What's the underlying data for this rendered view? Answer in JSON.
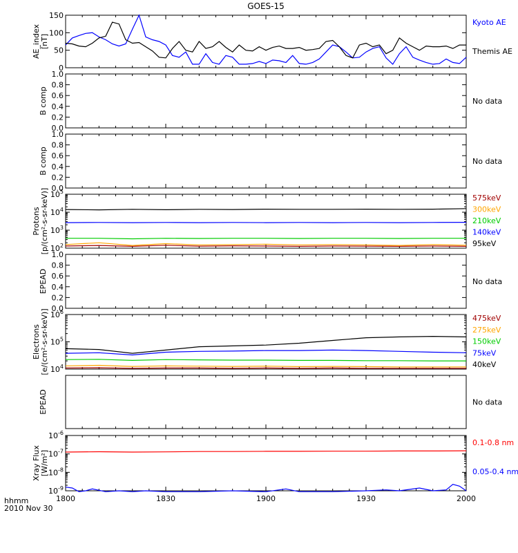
{
  "title": "GOES-15",
  "footer": {
    "time_label": "hhmm",
    "date_label": "2010 Nov 30"
  },
  "x_axis": {
    "ticks": [
      "1800",
      "1830",
      "1900",
      "1930",
      "2000"
    ],
    "range_minutes": [
      0,
      120
    ]
  },
  "no_data_text": "No data",
  "chart_data": [
    {
      "id": "ae",
      "type": "line",
      "ylabel": [
        "AE_index",
        "[nT]"
      ],
      "ylim": [
        0,
        150
      ],
      "scale": "linear",
      "ticks": [
        {
          "v": 0,
          "label": "0"
        },
        {
          "v": 50,
          "label": "50"
        },
        {
          "v": 100,
          "label": "100"
        },
        {
          "v": 150,
          "label": "150"
        }
      ],
      "series": [
        {
          "name": "Kyoto AE",
          "color": "#0000ff",
          "x": [
            0,
            2,
            4,
            6,
            8,
            10,
            12,
            14,
            16,
            18,
            20,
            22,
            24,
            26,
            28,
            30,
            32,
            34,
            36,
            38,
            40,
            42,
            44,
            46,
            48,
            50,
            52,
            54,
            56,
            58,
            60,
            62,
            64,
            66,
            68,
            70,
            72,
            74,
            76,
            78,
            80,
            82,
            84,
            86,
            88,
            90,
            92,
            94,
            96,
            98,
            100,
            102,
            104,
            106,
            108,
            110,
            112,
            114,
            116,
            118,
            120
          ],
          "y": [
            65,
            85,
            92,
            98,
            100,
            88,
            80,
            68,
            62,
            68,
            110,
            150,
            88,
            80,
            75,
            65,
            35,
            30,
            45,
            10,
            10,
            40,
            15,
            10,
            35,
            30,
            10,
            10,
            12,
            18,
            12,
            22,
            20,
            15,
            35,
            12,
            10,
            15,
            25,
            45,
            65,
            60,
            45,
            28,
            30,
            45,
            55,
            60,
            28,
            10,
            40,
            60,
            30,
            22,
            15,
            10,
            12,
            25,
            15,
            12,
            30
          ]
        },
        {
          "name": "Themis AE",
          "color": "#000000",
          "x": [
            0,
            2,
            4,
            6,
            8,
            10,
            12,
            14,
            16,
            18,
            20,
            22,
            24,
            26,
            28,
            30,
            32,
            34,
            36,
            38,
            40,
            42,
            44,
            46,
            48,
            50,
            52,
            54,
            56,
            58,
            60,
            62,
            64,
            66,
            68,
            70,
            72,
            74,
            76,
            78,
            80,
            82,
            84,
            86,
            88,
            90,
            92,
            94,
            96,
            98,
            100,
            102,
            104,
            106,
            108,
            110,
            112,
            114,
            116,
            118,
            120
          ],
          "y": [
            70,
            68,
            62,
            60,
            70,
            85,
            90,
            130,
            125,
            80,
            70,
            72,
            60,
            48,
            30,
            28,
            55,
            75,
            50,
            45,
            75,
            55,
            60,
            75,
            58,
            45,
            65,
            50,
            48,
            60,
            50,
            58,
            62,
            55,
            55,
            58,
            50,
            52,
            55,
            75,
            78,
            60,
            35,
            28,
            65,
            70,
            60,
            65,
            40,
            50,
            85,
            70,
            60,
            50,
            62,
            60,
            60,
            62,
            55,
            65,
            65
          ]
        }
      ],
      "legend": [
        "Kyoto AE",
        "Themis AE"
      ]
    },
    {
      "id": "bcomp1",
      "type": "line",
      "ylabel": [
        "B comp"
      ],
      "ylim": [
        0,
        1
      ],
      "scale": "linear",
      "ticks": [
        {
          "v": 0,
          "label": "0.0"
        },
        {
          "v": 0.2,
          "label": "0.2"
        },
        {
          "v": 0.4,
          "label": "0.4"
        },
        {
          "v": 0.6,
          "label": "0.6"
        },
        {
          "v": 0.8,
          "label": "0.8"
        },
        {
          "v": 1,
          "label": "1.0"
        }
      ],
      "no_data": true
    },
    {
      "id": "bcomp2",
      "type": "line",
      "ylabel": [
        "B comp"
      ],
      "ylim": [
        0,
        1
      ],
      "scale": "linear",
      "ticks": [
        {
          "v": 0,
          "label": "0.0"
        },
        {
          "v": 0.2,
          "label": "0.2"
        },
        {
          "v": 0.4,
          "label": "0.4"
        },
        {
          "v": 0.6,
          "label": "0.6"
        },
        {
          "v": 0.8,
          "label": "0.8"
        },
        {
          "v": 1,
          "label": "1.0"
        }
      ],
      "no_data": true
    },
    {
      "id": "protons",
      "type": "line",
      "ylabel": [
        "Protons",
        "[p/(cm²-s-sr-keV)]"
      ],
      "ylim_exp": [
        2,
        5
      ],
      "scale": "log",
      "ticks": [
        {
          "v": 2,
          "base": "10",
          "exp": "2"
        },
        {
          "v": 3,
          "base": "10",
          "exp": "3"
        },
        {
          "v": 4,
          "base": "10",
          "exp": "4"
        },
        {
          "v": 5,
          "base": "10",
          "exp": "5"
        }
      ],
      "series": [
        {
          "name": "575keV",
          "color": "#a00000",
          "x": [
            0,
            10,
            20,
            30,
            40,
            50,
            60,
            70,
            80,
            90,
            100,
            110,
            120
          ],
          "log10_y": [
            2.12,
            2.15,
            2.1,
            2.16,
            2.11,
            2.13,
            2.12,
            2.1,
            2.12,
            2.11,
            2.1,
            2.12,
            2.1
          ]
        },
        {
          "name": "300keV",
          "color": "#ffa500",
          "x": [
            0,
            10,
            20,
            30,
            40,
            50,
            60,
            70,
            80,
            90,
            100,
            110,
            120
          ],
          "log10_y": [
            2.2,
            2.3,
            2.15,
            2.25,
            2.18,
            2.2,
            2.22,
            2.18,
            2.2,
            2.18,
            2.15,
            2.2,
            2.16
          ]
        },
        {
          "name": "210keV",
          "color": "#00cc00",
          "x": [
            0,
            10,
            20,
            30,
            40,
            50,
            60,
            70,
            80,
            90,
            100,
            110,
            120
          ],
          "log10_y": [
            2.55,
            2.55,
            2.52,
            2.55,
            2.54,
            2.55,
            2.55,
            2.54,
            2.55,
            2.55,
            2.54,
            2.55,
            2.55
          ]
        },
        {
          "name": "140keV",
          "color": "#0000ff",
          "x": [
            0,
            10,
            20,
            30,
            40,
            50,
            60,
            70,
            80,
            90,
            100,
            110,
            120
          ],
          "log10_y": [
            3.42,
            3.43,
            3.42,
            3.43,
            3.42,
            3.43,
            3.42,
            3.43,
            3.42,
            3.43,
            3.42,
            3.43,
            3.44
          ]
        },
        {
          "name": "95keV",
          "color": "#000000",
          "x": [
            0,
            10,
            20,
            30,
            40,
            50,
            60,
            70,
            80,
            90,
            100,
            110,
            120
          ],
          "log10_y": [
            4.15,
            4.13,
            4.16,
            4.14,
            4.16,
            4.15,
            4.17,
            4.16,
            4.16,
            4.17,
            4.16,
            4.17,
            4.2
          ]
        }
      ],
      "legend": [
        "575keV",
        "300keV",
        "210keV",
        "140keV",
        "95keV"
      ]
    },
    {
      "id": "epead1",
      "type": "line",
      "ylabel": [
        "EPEAD"
      ],
      "ylim": [
        0,
        1
      ],
      "scale": "linear",
      "ticks": [
        {
          "v": 0,
          "label": "0.0"
        },
        {
          "v": 0.2,
          "label": "0.2"
        },
        {
          "v": 0.4,
          "label": "0.4"
        },
        {
          "v": 0.6,
          "label": "0.6"
        },
        {
          "v": 0.8,
          "label": "0.8"
        },
        {
          "v": 1,
          "label": "1.0"
        }
      ],
      "no_data": true
    },
    {
      "id": "electrons",
      "type": "line",
      "ylabel": [
        "Electrons",
        "[e/(cm²-s-sr-keV)]"
      ],
      "ylim_exp": [
        4,
        6
      ],
      "scale": "log",
      "ticks": [
        {
          "v": 4,
          "base": "10",
          "exp": "4"
        },
        {
          "v": 5,
          "base": "10",
          "exp": "5"
        },
        {
          "v": 6,
          "base": "10",
          "exp": "6"
        }
      ],
      "series": [
        {
          "name": "475keV",
          "color": "#a00000",
          "x": [
            0,
            10,
            20,
            30,
            40,
            50,
            60,
            70,
            80,
            90,
            100,
            110,
            120
          ],
          "log10_y": [
            4.04,
            4.05,
            4.03,
            4.04,
            4.04,
            4.03,
            4.04,
            4.03,
            4.04,
            4.03,
            4.03,
            4.03,
            4.03
          ]
        },
        {
          "name": "275keV",
          "color": "#ffa500",
          "x": [
            0,
            10,
            20,
            30,
            40,
            50,
            60,
            70,
            80,
            90,
            100,
            110,
            120
          ],
          "log10_y": [
            4.12,
            4.14,
            4.1,
            4.12,
            4.11,
            4.1,
            4.11,
            4.09,
            4.1,
            4.09,
            4.08,
            4.08,
            4.08
          ]
        },
        {
          "name": "150keV",
          "color": "#00cc00",
          "x": [
            0,
            10,
            20,
            30,
            40,
            50,
            60,
            70,
            80,
            90,
            100,
            110,
            120
          ],
          "log10_y": [
            4.35,
            4.36,
            4.32,
            4.35,
            4.34,
            4.33,
            4.33,
            4.32,
            4.32,
            4.31,
            4.31,
            4.3,
            4.3
          ]
        },
        {
          "name": "75keV",
          "color": "#0000ff",
          "x": [
            0,
            10,
            20,
            30,
            40,
            50,
            60,
            70,
            80,
            90,
            100,
            110,
            120
          ],
          "log10_y": [
            4.58,
            4.6,
            4.52,
            4.62,
            4.65,
            4.66,
            4.68,
            4.68,
            4.7,
            4.68,
            4.65,
            4.62,
            4.6
          ]
        },
        {
          "name": "40keV",
          "color": "#000000",
          "x": [
            0,
            10,
            20,
            30,
            40,
            50,
            60,
            70,
            80,
            90,
            100,
            110,
            120
          ],
          "log10_y": [
            4.75,
            4.72,
            4.58,
            4.7,
            4.82,
            4.85,
            4.88,
            4.95,
            5.05,
            5.15,
            5.18,
            5.2,
            5.18
          ]
        }
      ],
      "legend": [
        "475keV",
        "275keV",
        "150keV",
        "75keV",
        "40keV"
      ]
    },
    {
      "id": "epead2",
      "type": "line",
      "ylabel": [
        "EPEAD"
      ],
      "scale": "none",
      "ticks": [],
      "no_data": true
    },
    {
      "id": "xray",
      "type": "line",
      "ylabel": [
        "Xray Flux",
        "[W/m²]"
      ],
      "ylim_exp": [
        -9,
        -6
      ],
      "scale": "log",
      "ticks": [
        {
          "v": -9,
          "base": "10",
          "exp": "-9"
        },
        {
          "v": -8,
          "base": "10",
          "exp": "-8"
        },
        {
          "v": -7,
          "base": "10",
          "exp": "-7"
        },
        {
          "v": -6,
          "base": "10",
          "exp": "-6"
        }
      ],
      "series": [
        {
          "name": "0.1-0.8 nm",
          "color": "#ff0000",
          "x": [
            0,
            10,
            20,
            30,
            40,
            50,
            60,
            70,
            80,
            90,
            100,
            110,
            120
          ],
          "log10_y": [
            -6.9,
            -6.88,
            -6.9,
            -6.89,
            -6.87,
            -6.87,
            -6.86,
            -6.86,
            -6.85,
            -6.85,
            -6.84,
            -6.84,
            -6.83
          ]
        },
        {
          "name": "0.05-0.4 nm",
          "color": "#0000ff",
          "x": [
            0,
            2,
            4,
            6,
            8,
            12,
            16,
            20,
            24,
            30,
            40,
            50,
            60,
            66,
            70,
            80,
            90,
            96,
            100,
            106,
            110,
            114,
            116,
            118,
            120
          ],
          "log10_y": [
            -8.8,
            -8.85,
            -9.05,
            -9.0,
            -8.9,
            -9.05,
            -9.0,
            -9.05,
            -9.0,
            -9.05,
            -9.05,
            -9.0,
            -9.05,
            -8.9,
            -9.05,
            -9.05,
            -9.0,
            -8.95,
            -9.0,
            -8.85,
            -9.0,
            -8.95,
            -8.65,
            -8.75,
            -9.0
          ]
        }
      ],
      "legend": [
        "0.1-0.8 nm",
        "0.05-0.4 nm"
      ]
    }
  ]
}
